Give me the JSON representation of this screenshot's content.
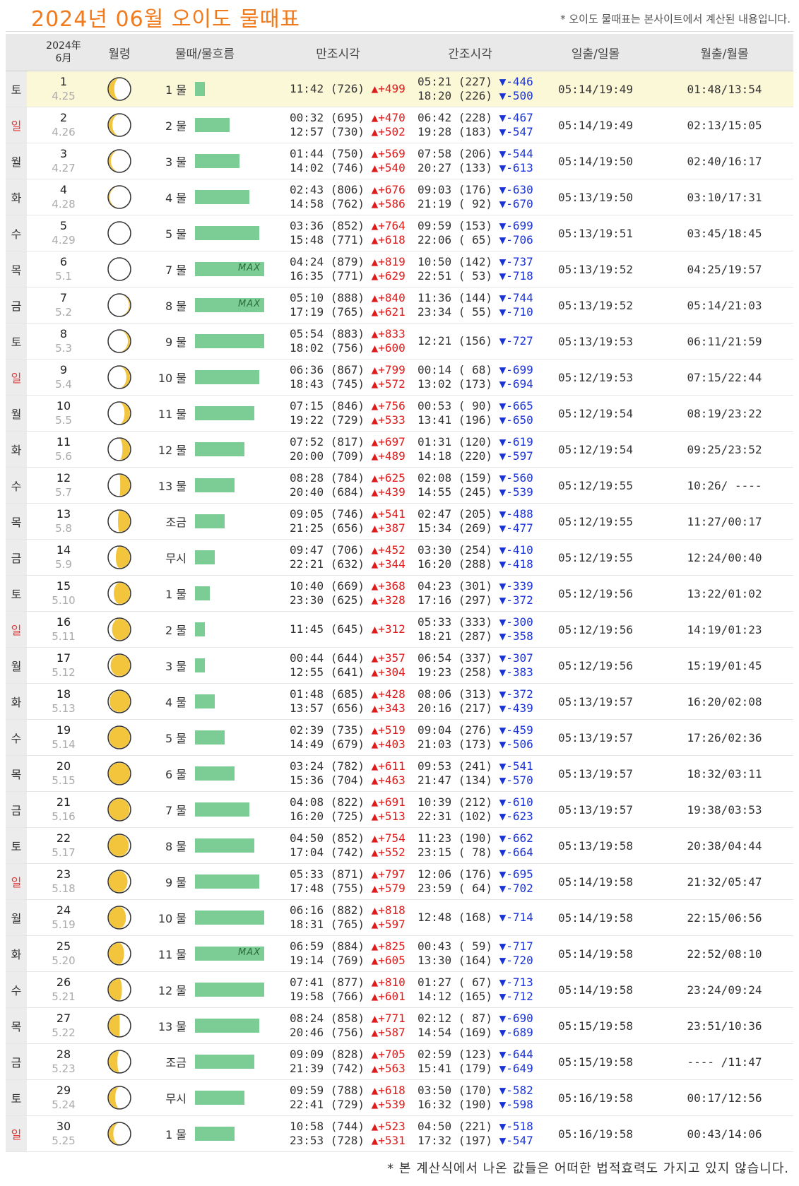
{
  "page": {
    "title": "2024년 06월 오이도 물때표",
    "note_top": "* 오이도 물때표는 본사이트에서 계산된 내용입니다.",
    "note_bottom": "* 본 계산식에서 나온 값들은 어떠한 법적효력도 가지고 있지 않습니다."
  },
  "header": {
    "year": "2024年",
    "month": "6月",
    "moon_phase": "월령",
    "flow": "물때/물흐름",
    "high_tide": "만조시각",
    "low_tide": "간조시각",
    "sun": "일출/일몰",
    "moon": "월출/월몰"
  },
  "colors": {
    "title": "#f07a1c",
    "rise": "#e01b1b",
    "fall": "#1a33d6",
    "bar": "#7ccd95",
    "sunday": "#e23c3c",
    "today_row": "#fbf8d8"
  },
  "rows": [
    {
      "dow": "토",
      "date": "1",
      "lunar": "4.25",
      "moon": "moon-icon",
      "flow": "1 물",
      "level": 1,
      "max": "",
      "high": [
        {
          "t": "11:42 (726)",
          "c": "▲+499"
        }
      ],
      "low": [
        {
          "t": "05:21 (227)",
          "c": "▼-446"
        },
        {
          "t": "18:20 (226)",
          "c": "▼-500"
        }
      ],
      "sun": "05:14/19:49",
      "moonrs": "01:48/13:54"
    },
    {
      "dow": "일",
      "date": "2",
      "lunar": "4.26",
      "flow": "2 물",
      "level": 3.5,
      "max": "",
      "high": [
        {
          "t": "00:32 (695)",
          "c": "▲+470"
        },
        {
          "t": "12:57 (730)",
          "c": "▲+502"
        }
      ],
      "low": [
        {
          "t": "06:42 (228)",
          "c": "▼-467"
        },
        {
          "t": "19:28 (183)",
          "c": "▼-547"
        }
      ],
      "sun": "05:14/19:49",
      "moonrs": "02:13/15:05"
    },
    {
      "dow": "월",
      "date": "3",
      "lunar": "4.27",
      "flow": "3 물",
      "level": 4.5,
      "max": "",
      "high": [
        {
          "t": "01:44 (750)",
          "c": "▲+569"
        },
        {
          "t": "14:02 (746)",
          "c": "▲+540"
        }
      ],
      "low": [
        {
          "t": "07:58 (206)",
          "c": "▼-544"
        },
        {
          "t": "20:27 (133)",
          "c": "▼-613"
        }
      ],
      "sun": "05:14/19:50",
      "moonrs": "02:40/16:17"
    },
    {
      "dow": "화",
      "date": "4",
      "lunar": "4.28",
      "flow": "4 물",
      "level": 5.5,
      "max": "",
      "high": [
        {
          "t": "02:43 (806)",
          "c": "▲+676"
        },
        {
          "t": "14:58 (762)",
          "c": "▲+586"
        }
      ],
      "low": [
        {
          "t": "09:03 (176)",
          "c": "▼-630"
        },
        {
          "t": "21:19 ( 92)",
          "c": "▼-670"
        }
      ],
      "sun": "05:13/19:50",
      "moonrs": "03:10/17:31"
    },
    {
      "dow": "수",
      "date": "5",
      "lunar": "4.29",
      "flow": "5 물",
      "level": 6.5,
      "max": "",
      "high": [
        {
          "t": "03:36 (852)",
          "c": "▲+764"
        },
        {
          "t": "15:48 (771)",
          "c": "▲+618"
        }
      ],
      "low": [
        {
          "t": "09:59 (153)",
          "c": "▼-699"
        },
        {
          "t": "22:06 ( 65)",
          "c": "▼-706"
        }
      ],
      "sun": "05:13/19:51",
      "moonrs": "03:45/18:45"
    },
    {
      "dow": "목",
      "date": "6",
      "lunar": "5.1",
      "flow": "7 물",
      "level": 7,
      "max": "MAX",
      "high": [
        {
          "t": "04:24 (879)",
          "c": "▲+819"
        },
        {
          "t": "16:35 (771)",
          "c": "▲+629"
        }
      ],
      "low": [
        {
          "t": "10:50 (142)",
          "c": "▼-737"
        },
        {
          "t": "22:51 ( 53)",
          "c": "▼-718"
        }
      ],
      "sun": "05:13/19:52",
      "moonrs": "04:25/19:57"
    },
    {
      "dow": "금",
      "date": "7",
      "lunar": "5.2",
      "flow": "8 물",
      "level": 7,
      "max": "MAX",
      "high": [
        {
          "t": "05:10 (888)",
          "c": "▲+840"
        },
        {
          "t": "17:19 (765)",
          "c": "▲+621"
        }
      ],
      "low": [
        {
          "t": "11:36 (144)",
          "c": "▼-744"
        },
        {
          "t": "23:34 ( 55)",
          "c": "▼-710"
        }
      ],
      "sun": "05:13/19:52",
      "moonrs": "05:14/21:03"
    },
    {
      "dow": "토",
      "date": "8",
      "lunar": "5.3",
      "flow": "9 물",
      "level": 7,
      "max": "",
      "high": [
        {
          "t": "05:54 (883)",
          "c": "▲+833"
        },
        {
          "t": "18:02 (756)",
          "c": "▲+600"
        }
      ],
      "low": [
        {
          "t": "12:21 (156)",
          "c": "▼-727"
        }
      ],
      "sun": "05:13/19:53",
      "moonrs": "06:11/21:59"
    },
    {
      "dow": "일",
      "date": "9",
      "lunar": "5.4",
      "flow": "10 물",
      "level": 6.5,
      "max": "",
      "high": [
        {
          "t": "06:36 (867)",
          "c": "▲+799"
        },
        {
          "t": "18:43 (745)",
          "c": "▲+572"
        }
      ],
      "low": [
        {
          "t": "00:14 ( 68)",
          "c": "▼-699"
        },
        {
          "t": "13:02 (173)",
          "c": "▼-694"
        }
      ],
      "sun": "05:12/19:53",
      "moonrs": "07:15/22:44"
    },
    {
      "dow": "월",
      "date": "10",
      "lunar": "5.5",
      "flow": "11 물",
      "level": 6,
      "max": "",
      "high": [
        {
          "t": "07:15 (846)",
          "c": "▲+756"
        },
        {
          "t": "19:22 (729)",
          "c": "▲+533"
        }
      ],
      "low": [
        {
          "t": "00:53 ( 90)",
          "c": "▼-665"
        },
        {
          "t": "13:41 (196)",
          "c": "▼-650"
        }
      ],
      "sun": "05:12/19:54",
      "moonrs": "08:19/23:22"
    },
    {
      "dow": "화",
      "date": "11",
      "lunar": "5.6",
      "flow": "12 물",
      "level": 5,
      "max": "",
      "high": [
        {
          "t": "07:52 (817)",
          "c": "▲+697"
        },
        {
          "t": "20:00 (709)",
          "c": "▲+489"
        }
      ],
      "low": [
        {
          "t": "01:31 (120)",
          "c": "▼-619"
        },
        {
          "t": "14:18 (220)",
          "c": "▼-597"
        }
      ],
      "sun": "05:12/19:54",
      "moonrs": "09:25/23:52"
    },
    {
      "dow": "수",
      "date": "12",
      "lunar": "5.7",
      "flow": "13 물",
      "level": 4,
      "max": "",
      "high": [
        {
          "t": "08:28 (784)",
          "c": "▲+625"
        },
        {
          "t": "20:40 (684)",
          "c": "▲+439"
        }
      ],
      "low": [
        {
          "t": "02:08 (159)",
          "c": "▼-560"
        },
        {
          "t": "14:55 (245)",
          "c": "▼-539"
        }
      ],
      "sun": "05:12/19:55",
      "moonrs": "10:26/ ----"
    },
    {
      "dow": "목",
      "date": "13",
      "lunar": "5.8",
      "flow": "조금",
      "level": 3,
      "max": "",
      "high": [
        {
          "t": "09:05 (746)",
          "c": "▲+541"
        },
        {
          "t": "21:25 (656)",
          "c": "▲+387"
        }
      ],
      "low": [
        {
          "t": "02:47 (205)",
          "c": "▼-488"
        },
        {
          "t": "15:34 (269)",
          "c": "▼-477"
        }
      ],
      "sun": "05:12/19:55",
      "moonrs": "11:27/00:17"
    },
    {
      "dow": "금",
      "date": "14",
      "lunar": "5.9",
      "flow": "무시",
      "level": 2,
      "max": "",
      "high": [
        {
          "t": "09:47 (706)",
          "c": "▲+452"
        },
        {
          "t": "22:21 (632)",
          "c": "▲+344"
        }
      ],
      "low": [
        {
          "t": "03:30 (254)",
          "c": "▼-410"
        },
        {
          "t": "16:20 (288)",
          "c": "▼-418"
        }
      ],
      "sun": "05:12/19:55",
      "moonrs": "12:24/00:40"
    },
    {
      "dow": "토",
      "date": "15",
      "lunar": "5.10",
      "flow": "1 물",
      "level": 1.5,
      "max": "",
      "high": [
        {
          "t": "10:40 (669)",
          "c": "▲+368"
        },
        {
          "t": "23:30 (625)",
          "c": "▲+328"
        }
      ],
      "low": [
        {
          "t": "04:23 (301)",
          "c": "▼-339"
        },
        {
          "t": "17:16 (297)",
          "c": "▼-372"
        }
      ],
      "sun": "05:12/19:56",
      "moonrs": "13:22/01:02"
    },
    {
      "dow": "일",
      "date": "16",
      "lunar": "5.11",
      "flow": "2 물",
      "level": 1,
      "max": "",
      "high": [
        {
          "t": "11:45 (645)",
          "c": "▲+312"
        }
      ],
      "low": [
        {
          "t": "05:33 (333)",
          "c": "▼-300"
        },
        {
          "t": "18:21 (287)",
          "c": "▼-358"
        }
      ],
      "sun": "05:12/19:56",
      "moonrs": "14:19/01:23"
    },
    {
      "dow": "월",
      "date": "17",
      "lunar": "5.12",
      "flow": "3 물",
      "level": 1,
      "max": "",
      "high": [
        {
          "t": "00:44 (644)",
          "c": "▲+357"
        },
        {
          "t": "12:55 (641)",
          "c": "▲+304"
        }
      ],
      "low": [
        {
          "t": "06:54 (337)",
          "c": "▼-307"
        },
        {
          "t": "19:23 (258)",
          "c": "▼-383"
        }
      ],
      "sun": "05:12/19:56",
      "moonrs": "15:19/01:45"
    },
    {
      "dow": "화",
      "date": "18",
      "lunar": "5.13",
      "flow": "4 물",
      "level": 2,
      "max": "",
      "high": [
        {
          "t": "01:48 (685)",
          "c": "▲+428"
        },
        {
          "t": "13:57 (656)",
          "c": "▲+343"
        }
      ],
      "low": [
        {
          "t": "08:06 (313)",
          "c": "▼-372"
        },
        {
          "t": "20:16 (217)",
          "c": "▼-439"
        }
      ],
      "sun": "05:13/19:57",
      "moonrs": "16:20/02:08"
    },
    {
      "dow": "수",
      "date": "19",
      "lunar": "5.14",
      "flow": "5 물",
      "level": 3,
      "max": "",
      "high": [
        {
          "t": "02:39 (735)",
          "c": "▲+519"
        },
        {
          "t": "14:49 (679)",
          "c": "▲+403"
        }
      ],
      "low": [
        {
          "t": "09:04 (276)",
          "c": "▼-459"
        },
        {
          "t": "21:03 (173)",
          "c": "▼-506"
        }
      ],
      "sun": "05:13/19:57",
      "moonrs": "17:26/02:36"
    },
    {
      "dow": "목",
      "date": "20",
      "lunar": "5.15",
      "flow": "6 물",
      "level": 4,
      "max": "",
      "high": [
        {
          "t": "03:24 (782)",
          "c": "▲+611"
        },
        {
          "t": "15:36 (704)",
          "c": "▲+463"
        }
      ],
      "low": [
        {
          "t": "09:53 (241)",
          "c": "▼-541"
        },
        {
          "t": "21:47 (134)",
          "c": "▼-570"
        }
      ],
      "sun": "05:13/19:57",
      "moonrs": "18:32/03:11"
    },
    {
      "dow": "금",
      "date": "21",
      "lunar": "5.16",
      "flow": "7 물",
      "level": 5.5,
      "max": "",
      "high": [
        {
          "t": "04:08 (822)",
          "c": "▲+691"
        },
        {
          "t": "16:20 (725)",
          "c": "▲+513"
        }
      ],
      "low": [
        {
          "t": "10:39 (212)",
          "c": "▼-610"
        },
        {
          "t": "22:31 (102)",
          "c": "▼-623"
        }
      ],
      "sun": "05:13/19:57",
      "moonrs": "19:38/03:53"
    },
    {
      "dow": "토",
      "date": "22",
      "lunar": "5.17",
      "flow": "8 물",
      "level": 6,
      "max": "",
      "high": [
        {
          "t": "04:50 (852)",
          "c": "▲+754"
        },
        {
          "t": "17:04 (742)",
          "c": "▲+552"
        }
      ],
      "low": [
        {
          "t": "11:23 (190)",
          "c": "▼-662"
        },
        {
          "t": "23:15 ( 78)",
          "c": "▼-664"
        }
      ],
      "sun": "05:13/19:58",
      "moonrs": "20:38/04:44"
    },
    {
      "dow": "일",
      "date": "23",
      "lunar": "5.18",
      "flow": "9 물",
      "level": 6.5,
      "max": "",
      "high": [
        {
          "t": "05:33 (871)",
          "c": "▲+797"
        },
        {
          "t": "17:48 (755)",
          "c": "▲+579"
        }
      ],
      "low": [
        {
          "t": "12:06 (176)",
          "c": "▼-695"
        },
        {
          "t": "23:59 ( 64)",
          "c": "▼-702"
        }
      ],
      "sun": "05:14/19:58",
      "moonrs": "21:32/05:47"
    },
    {
      "dow": "월",
      "date": "24",
      "lunar": "5.19",
      "flow": "10 물",
      "level": 7,
      "max": "",
      "high": [
        {
          "t": "06:16 (882)",
          "c": "▲+818"
        },
        {
          "t": "18:31 (765)",
          "c": "▲+597"
        }
      ],
      "low": [
        {
          "t": "12:48 (168)",
          "c": "▼-714"
        }
      ],
      "sun": "05:14/19:58",
      "moonrs": "22:15/06:56"
    },
    {
      "dow": "화",
      "date": "25",
      "lunar": "5.20",
      "flow": "11 물",
      "level": 7,
      "max": "MAX",
      "high": [
        {
          "t": "06:59 (884)",
          "c": "▲+825"
        },
        {
          "t": "19:14 (769)",
          "c": "▲+605"
        }
      ],
      "low": [
        {
          "t": "00:43 ( 59)",
          "c": "▼-717"
        },
        {
          "t": "13:30 (164)",
          "c": "▼-720"
        }
      ],
      "sun": "05:14/19:58",
      "moonrs": "22:52/08:10"
    },
    {
      "dow": "수",
      "date": "26",
      "lunar": "5.21",
      "flow": "12 물",
      "level": 7,
      "max": "",
      "high": [
        {
          "t": "07:41 (877)",
          "c": "▲+810"
        },
        {
          "t": "19:58 (766)",
          "c": "▲+601"
        }
      ],
      "low": [
        {
          "t": "01:27 ( 67)",
          "c": "▼-713"
        },
        {
          "t": "14:12 (165)",
          "c": "▼-712"
        }
      ],
      "sun": "05:14/19:58",
      "moonrs": "23:24/09:24"
    },
    {
      "dow": "목",
      "date": "27",
      "lunar": "5.22",
      "flow": "13 물",
      "level": 6.5,
      "max": "",
      "high": [
        {
          "t": "08:24 (858)",
          "c": "▲+771"
        },
        {
          "t": "20:46 (756)",
          "c": "▲+587"
        }
      ],
      "low": [
        {
          "t": "02:12 ( 87)",
          "c": "▼-690"
        },
        {
          "t": "14:54 (169)",
          "c": "▼-689"
        }
      ],
      "sun": "05:15/19:58",
      "moonrs": "23:51/10:36"
    },
    {
      "dow": "금",
      "date": "28",
      "lunar": "5.23",
      "flow": "조금",
      "level": 6,
      "max": "",
      "high": [
        {
          "t": "09:09 (828)",
          "c": "▲+705"
        },
        {
          "t": "21:39 (742)",
          "c": "▲+563"
        }
      ],
      "low": [
        {
          "t": "02:59 (123)",
          "c": "▼-644"
        },
        {
          "t": "15:41 (179)",
          "c": "▼-649"
        }
      ],
      "sun": "05:15/19:58",
      "moonrs": "---- /11:47"
    },
    {
      "dow": "토",
      "date": "29",
      "lunar": "5.24",
      "flow": "무시",
      "level": 5,
      "max": "",
      "high": [
        {
          "t": "09:59 (788)",
          "c": "▲+618"
        },
        {
          "t": "22:41 (729)",
          "c": "▲+539"
        }
      ],
      "low": [
        {
          "t": "03:50 (170)",
          "c": "▼-582"
        },
        {
          "t": "16:32 (190)",
          "c": "▼-598"
        }
      ],
      "sun": "05:16/19:58",
      "moonrs": "00:17/12:56"
    },
    {
      "dow": "일",
      "date": "30",
      "lunar": "5.25",
      "flow": "1 물",
      "level": 4,
      "max": "",
      "high": [
        {
          "t": "10:58 (744)",
          "c": "▲+523"
        },
        {
          "t": "23:53 (728)",
          "c": "▲+531"
        }
      ],
      "low": [
        {
          "t": "04:50 (221)",
          "c": "▼-518"
        },
        {
          "t": "17:32 (197)",
          "c": "▼-547"
        }
      ],
      "sun": "05:16/19:58",
      "moonrs": "00:43/14:06"
    }
  ]
}
